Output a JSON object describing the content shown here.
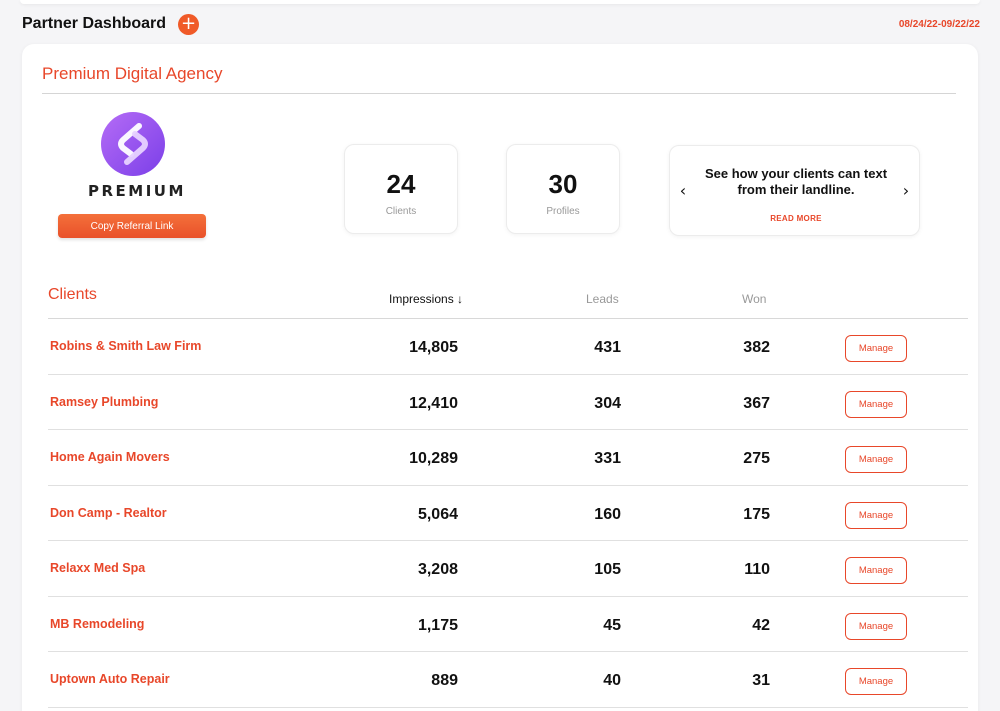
{
  "header": {
    "title": "Partner Dashboard",
    "add_icon": "plus-icon",
    "add_symbol": "+",
    "date_range": "08/24/22-09/22/22"
  },
  "agency": {
    "name": "Premium Digital Agency",
    "logo_text": "PREMIUM",
    "referral_button": "Copy Referral Link",
    "brand_gradient": [
      "#b56cf6",
      "#7b3fe8"
    ]
  },
  "stats": [
    {
      "value": "24",
      "label": "Clients"
    },
    {
      "value": "30",
      "label": "Profiles"
    }
  ],
  "promo": {
    "text": "See how your clients can text from their landline.",
    "read_more": "READ MORE",
    "prev_icon": "chevron-left-icon",
    "prev_symbol": "‹",
    "next_icon": "chevron-right-icon",
    "next_symbol": "›"
  },
  "table": {
    "title": "Clients",
    "columns": {
      "impressions": "Impressions ↓",
      "leads": "Leads",
      "won": "Won"
    },
    "manage_label": "Manage",
    "rows": [
      {
        "name": "Robins & Smith Law Firm",
        "impressions": "14,805",
        "leads": "431",
        "won": "382"
      },
      {
        "name": "Ramsey Plumbing",
        "impressions": "12,410",
        "leads": "304",
        "won": "367"
      },
      {
        "name": "Home Again Movers",
        "impressions": "10,289",
        "leads": "331",
        "won": "275"
      },
      {
        "name": "Don Camp - Realtor",
        "impressions": "5,064",
        "leads": "160",
        "won": "175"
      },
      {
        "name": "Relaxx Med Spa",
        "impressions": "3,208",
        "leads": "105",
        "won": "110"
      },
      {
        "name": "MB Remodeling",
        "impressions": "1,175",
        "leads": "45",
        "won": "42"
      },
      {
        "name": "Uptown Auto Repair",
        "impressions": "889",
        "leads": "40",
        "won": "31"
      }
    ]
  },
  "colors": {
    "accent": "#e8472a",
    "accent_button": "#f05a28",
    "background": "#f5f5f7"
  }
}
